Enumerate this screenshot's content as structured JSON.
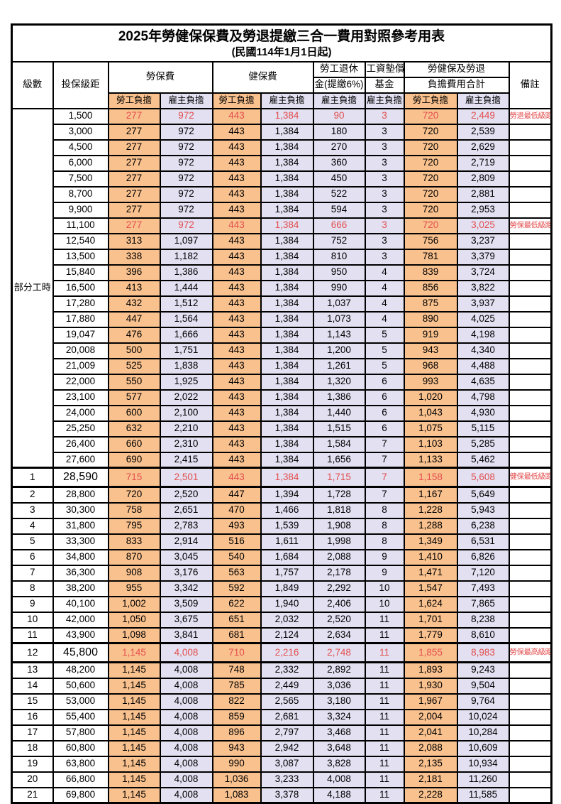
{
  "title": "2025年勞健保保費及勞退提繳三合一費用對照參考用表",
  "subtitle": "(民國114年1月1日起)",
  "header": {
    "level": "級數",
    "bracket": "投保級距",
    "labor_insurance": "勞保費",
    "health_insurance": "健保費",
    "pension_line1": "勞工退休",
    "pension_line2": "金(提繳6%)",
    "wage_fund_line1": "工資墊償",
    "wage_fund_line2": "基金",
    "total_line1": "勞健保及勞退",
    "total_line2": "負擔費用合計",
    "employee_burden": "勞工負擔",
    "employer_burden": "雇主負擔",
    "remark": "備註"
  },
  "part_time_label": "部分工時",
  "colors": {
    "employee_bg": "#F9C18E",
    "employer_bg": "#E2E0F1",
    "highlight_text": "#E34F4F",
    "border": "#000000"
  },
  "rows": [
    {
      "level": "",
      "bracket": "1,500",
      "cells": [
        "277",
        "972",
        "443",
        "1,384",
        "90",
        "3",
        "720",
        "2,449"
      ],
      "remark": "勞退最低級距",
      "red": true,
      "big": false
    },
    {
      "level": "",
      "bracket": "3,000",
      "cells": [
        "277",
        "972",
        "443",
        "1,384",
        "180",
        "3",
        "720",
        "2,539"
      ],
      "remark": "",
      "red": false,
      "big": false
    },
    {
      "level": "",
      "bracket": "4,500",
      "cells": [
        "277",
        "972",
        "443",
        "1,384",
        "270",
        "3",
        "720",
        "2,629"
      ],
      "remark": "",
      "red": false,
      "big": false
    },
    {
      "level": "",
      "bracket": "6,000",
      "cells": [
        "277",
        "972",
        "443",
        "1,384",
        "360",
        "3",
        "720",
        "2,719"
      ],
      "remark": "",
      "red": false,
      "big": false
    },
    {
      "level": "",
      "bracket": "7,500",
      "cells": [
        "277",
        "972",
        "443",
        "1,384",
        "450",
        "3",
        "720",
        "2,809"
      ],
      "remark": "",
      "red": false,
      "big": false
    },
    {
      "level": "",
      "bracket": "8,700",
      "cells": [
        "277",
        "972",
        "443",
        "1,384",
        "522",
        "3",
        "720",
        "2,881"
      ],
      "remark": "",
      "red": false,
      "big": false
    },
    {
      "level": "",
      "bracket": "9,900",
      "cells": [
        "277",
        "972",
        "443",
        "1,384",
        "594",
        "3",
        "720",
        "2,953"
      ],
      "remark": "",
      "red": false,
      "big": false
    },
    {
      "level": "",
      "bracket": "11,100",
      "cells": [
        "277",
        "972",
        "443",
        "1,384",
        "666",
        "3",
        "720",
        "3,025"
      ],
      "remark": "勞保最低級距",
      "red": true,
      "big": false
    },
    {
      "level": "",
      "bracket": "12,540",
      "cells": [
        "313",
        "1,097",
        "443",
        "1,384",
        "752",
        "3",
        "756",
        "3,237"
      ],
      "remark": "",
      "red": false,
      "big": false
    },
    {
      "level": "",
      "bracket": "13,500",
      "cells": [
        "338",
        "1,182",
        "443",
        "1,384",
        "810",
        "3",
        "781",
        "3,379"
      ],
      "remark": "",
      "red": false,
      "big": false
    },
    {
      "level": "",
      "bracket": "15,840",
      "cells": [
        "396",
        "1,386",
        "443",
        "1,384",
        "950",
        "4",
        "839",
        "3,724"
      ],
      "remark": "",
      "red": false,
      "big": false
    },
    {
      "level": "",
      "bracket": "16,500",
      "cells": [
        "413",
        "1,444",
        "443",
        "1,384",
        "990",
        "4",
        "856",
        "3,822"
      ],
      "remark": "",
      "red": false,
      "big": false
    },
    {
      "level": "",
      "bracket": "17,280",
      "cells": [
        "432",
        "1,512",
        "443",
        "1,384",
        "1,037",
        "4",
        "875",
        "3,937"
      ],
      "remark": "",
      "red": false,
      "big": false
    },
    {
      "level": "",
      "bracket": "17,880",
      "cells": [
        "447",
        "1,564",
        "443",
        "1,384",
        "1,073",
        "4",
        "890",
        "4,025"
      ],
      "remark": "",
      "red": false,
      "big": false
    },
    {
      "level": "",
      "bracket": "19,047",
      "cells": [
        "476",
        "1,666",
        "443",
        "1,384",
        "1,143",
        "5",
        "919",
        "4,198"
      ],
      "remark": "",
      "red": false,
      "big": false
    },
    {
      "level": "",
      "bracket": "20,008",
      "cells": [
        "500",
        "1,751",
        "443",
        "1,384",
        "1,200",
        "5",
        "943",
        "4,340"
      ],
      "remark": "",
      "red": false,
      "big": false
    },
    {
      "level": "",
      "bracket": "21,009",
      "cells": [
        "525",
        "1,838",
        "443",
        "1,384",
        "1,261",
        "5",
        "968",
        "4,488"
      ],
      "remark": "",
      "red": false,
      "big": false
    },
    {
      "level": "",
      "bracket": "22,000",
      "cells": [
        "550",
        "1,925",
        "443",
        "1,384",
        "1,320",
        "6",
        "993",
        "4,635"
      ],
      "remark": "",
      "red": false,
      "big": false
    },
    {
      "level": "",
      "bracket": "23,100",
      "cells": [
        "577",
        "2,022",
        "443",
        "1,384",
        "1,386",
        "6",
        "1,020",
        "4,798"
      ],
      "remark": "",
      "red": false,
      "big": false
    },
    {
      "level": "",
      "bracket": "24,000",
      "cells": [
        "600",
        "2,100",
        "443",
        "1,384",
        "1,440",
        "6",
        "1,043",
        "4,930"
      ],
      "remark": "",
      "red": false,
      "big": false
    },
    {
      "level": "",
      "bracket": "25,250",
      "cells": [
        "632",
        "2,210",
        "443",
        "1,384",
        "1,515",
        "6",
        "1,075",
        "5,115"
      ],
      "remark": "",
      "red": false,
      "big": false
    },
    {
      "level": "",
      "bracket": "26,400",
      "cells": [
        "660",
        "2,310",
        "443",
        "1,384",
        "1,584",
        "7",
        "1,103",
        "5,285"
      ],
      "remark": "",
      "red": false,
      "big": false
    },
    {
      "level": "",
      "bracket": "27,600",
      "cells": [
        "690",
        "2,415",
        "443",
        "1,384",
        "1,656",
        "7",
        "1,133",
        "5,462"
      ],
      "remark": "",
      "red": false,
      "big": false
    },
    {
      "level": "1",
      "bracket": "28,590",
      "cells": [
        "715",
        "2,501",
        "443",
        "1,384",
        "1,715",
        "7",
        "1,158",
        "5,608"
      ],
      "remark": "健保最低級距",
      "red": true,
      "big": true
    },
    {
      "level": "2",
      "bracket": "28,800",
      "cells": [
        "720",
        "2,520",
        "447",
        "1,394",
        "1,728",
        "7",
        "1,167",
        "5,649"
      ],
      "remark": "",
      "red": false,
      "big": false
    },
    {
      "level": "3",
      "bracket": "30,300",
      "cells": [
        "758",
        "2,651",
        "470",
        "1,466",
        "1,818",
        "8",
        "1,228",
        "5,943"
      ],
      "remark": "",
      "red": false,
      "big": false
    },
    {
      "level": "4",
      "bracket": "31,800",
      "cells": [
        "795",
        "2,783",
        "493",
        "1,539",
        "1,908",
        "8",
        "1,288",
        "6,238"
      ],
      "remark": "",
      "red": false,
      "big": false
    },
    {
      "level": "5",
      "bracket": "33,300",
      "cells": [
        "833",
        "2,914",
        "516",
        "1,611",
        "1,998",
        "8",
        "1,349",
        "6,531"
      ],
      "remark": "",
      "red": false,
      "big": false
    },
    {
      "level": "6",
      "bracket": "34,800",
      "cells": [
        "870",
        "3,045",
        "540",
        "1,684",
        "2,088",
        "9",
        "1,410",
        "6,826"
      ],
      "remark": "",
      "red": false,
      "big": false
    },
    {
      "level": "7",
      "bracket": "36,300",
      "cells": [
        "908",
        "3,176",
        "563",
        "1,757",
        "2,178",
        "9",
        "1,471",
        "7,120"
      ],
      "remark": "",
      "red": false,
      "big": false
    },
    {
      "level": "8",
      "bracket": "38,200",
      "cells": [
        "955",
        "3,342",
        "592",
        "1,849",
        "2,292",
        "10",
        "1,547",
        "7,493"
      ],
      "remark": "",
      "red": false,
      "big": false
    },
    {
      "level": "9",
      "bracket": "40,100",
      "cells": [
        "1,002",
        "3,509",
        "622",
        "1,940",
        "2,406",
        "10",
        "1,624",
        "7,865"
      ],
      "remark": "",
      "red": false,
      "big": false
    },
    {
      "level": "10",
      "bracket": "42,000",
      "cells": [
        "1,050",
        "3,675",
        "651",
        "2,032",
        "2,520",
        "11",
        "1,701",
        "8,238"
      ],
      "remark": "",
      "red": false,
      "big": false
    },
    {
      "level": "11",
      "bracket": "43,900",
      "cells": [
        "1,098",
        "3,841",
        "681",
        "2,124",
        "2,634",
        "11",
        "1,779",
        "8,610"
      ],
      "remark": "",
      "red": false,
      "big": false
    },
    {
      "level": "12",
      "bracket": "45,800",
      "cells": [
        "1,145",
        "4,008",
        "710",
        "2,216",
        "2,748",
        "11",
        "1,855",
        "8,983"
      ],
      "remark": "勞保最高級距",
      "red": true,
      "big": true
    },
    {
      "level": "13",
      "bracket": "48,200",
      "cells": [
        "1,145",
        "4,008",
        "748",
        "2,332",
        "2,892",
        "11",
        "1,893",
        "9,243"
      ],
      "remark": "",
      "red": false,
      "big": false
    },
    {
      "level": "14",
      "bracket": "50,600",
      "cells": [
        "1,145",
        "4,008",
        "785",
        "2,449",
        "3,036",
        "11",
        "1,930",
        "9,504"
      ],
      "remark": "",
      "red": false,
      "big": false
    },
    {
      "level": "15",
      "bracket": "53,000",
      "cells": [
        "1,145",
        "4,008",
        "822",
        "2,565",
        "3,180",
        "11",
        "1,967",
        "9,764"
      ],
      "remark": "",
      "red": false,
      "big": false
    },
    {
      "level": "16",
      "bracket": "55,400",
      "cells": [
        "1,145",
        "4,008",
        "859",
        "2,681",
        "3,324",
        "11",
        "2,004",
        "10,024"
      ],
      "remark": "",
      "red": false,
      "big": false
    },
    {
      "level": "17",
      "bracket": "57,800",
      "cells": [
        "1,145",
        "4,008",
        "896",
        "2,797",
        "3,468",
        "11",
        "2,041",
        "10,284"
      ],
      "remark": "",
      "red": false,
      "big": false
    },
    {
      "level": "18",
      "bracket": "60,800",
      "cells": [
        "1,145",
        "4,008",
        "943",
        "2,942",
        "3,648",
        "11",
        "2,088",
        "10,609"
      ],
      "remark": "",
      "red": false,
      "big": false
    },
    {
      "level": "19",
      "bracket": "63,800",
      "cells": [
        "1,145",
        "4,008",
        "990",
        "3,087",
        "3,828",
        "11",
        "2,135",
        "10,934"
      ],
      "remark": "",
      "red": false,
      "big": false
    },
    {
      "level": "20",
      "bracket": "66,800",
      "cells": [
        "1,145",
        "4,008",
        "1,036",
        "3,233",
        "4,008",
        "11",
        "2,181",
        "11,260"
      ],
      "remark": "",
      "red": false,
      "big": false
    },
    {
      "level": "21",
      "bracket": "69,800",
      "cells": [
        "1,145",
        "4,008",
        "1,083",
        "3,378",
        "4,188",
        "11",
        "2,228",
        "11,585"
      ],
      "remark": "",
      "red": false,
      "big": false
    }
  ]
}
